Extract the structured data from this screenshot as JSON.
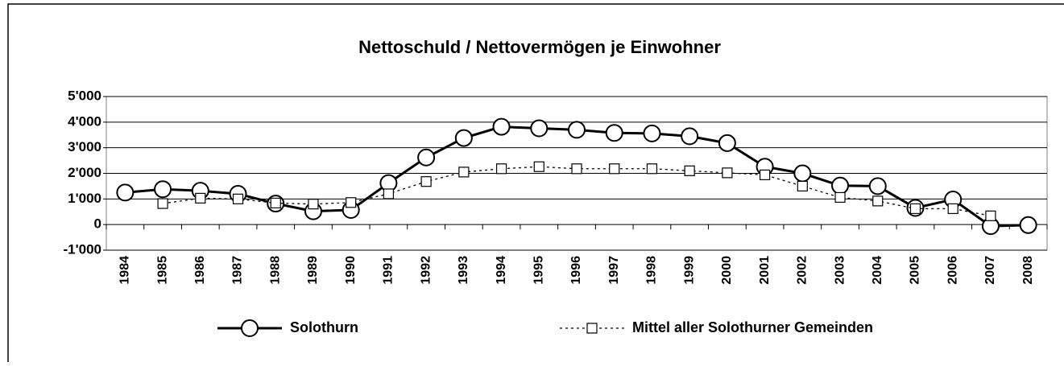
{
  "chart_data": {
    "type": "line",
    "title": "Nettoschuld / Nettovermögen je Einwohner",
    "categories": [
      "1984",
      "1985",
      "1986",
      "1987",
      "1988",
      "1989",
      "1990",
      "1991",
      "1992",
      "1993",
      "1994",
      "1995",
      "1996",
      "1997",
      "1998",
      "1999",
      "2000",
      "2001",
      "2002",
      "2003",
      "2004",
      "2005",
      "2006",
      "2007",
      "2008"
    ],
    "series": [
      {
        "name": "Solothurn",
        "color": "#000000",
        "line_style": "solid",
        "marker": "circle",
        "values": [
          1250,
          1380,
          1320,
          1200,
          820,
          520,
          570,
          1620,
          2620,
          3380,
          3820,
          3760,
          3700,
          3580,
          3560,
          3450,
          3180,
          2260,
          2000,
          1520,
          1500,
          650,
          980,
          -60,
          -20
        ]
      },
      {
        "name": "Mittel aller Solothurner Gemeinden",
        "color": "#000000",
        "line_style": "dotted",
        "marker": "square",
        "values": [
          null,
          820,
          1030,
          1000,
          840,
          800,
          860,
          1200,
          1680,
          2050,
          2180,
          2260,
          2180,
          2180,
          2180,
          2100,
          2020,
          1940,
          1500,
          1060,
          920,
          620,
          620,
          340,
          null
        ]
      }
    ],
    "ylim": [
      -1000,
      5000
    ],
    "yticks": [
      {
        "value": -1000,
        "label": "-1'000"
      },
      0,
      {
        "value": 1000,
        "label": "1'000"
      },
      {
        "value": 2000,
        "label": "2'000"
      },
      {
        "value": 3000,
        "label": "3'000"
      },
      {
        "value": 4000,
        "label": "4'000"
      },
      {
        "value": 5000,
        "label": "5'000"
      }
    ],
    "grid": true,
    "legend": "bottom"
  }
}
